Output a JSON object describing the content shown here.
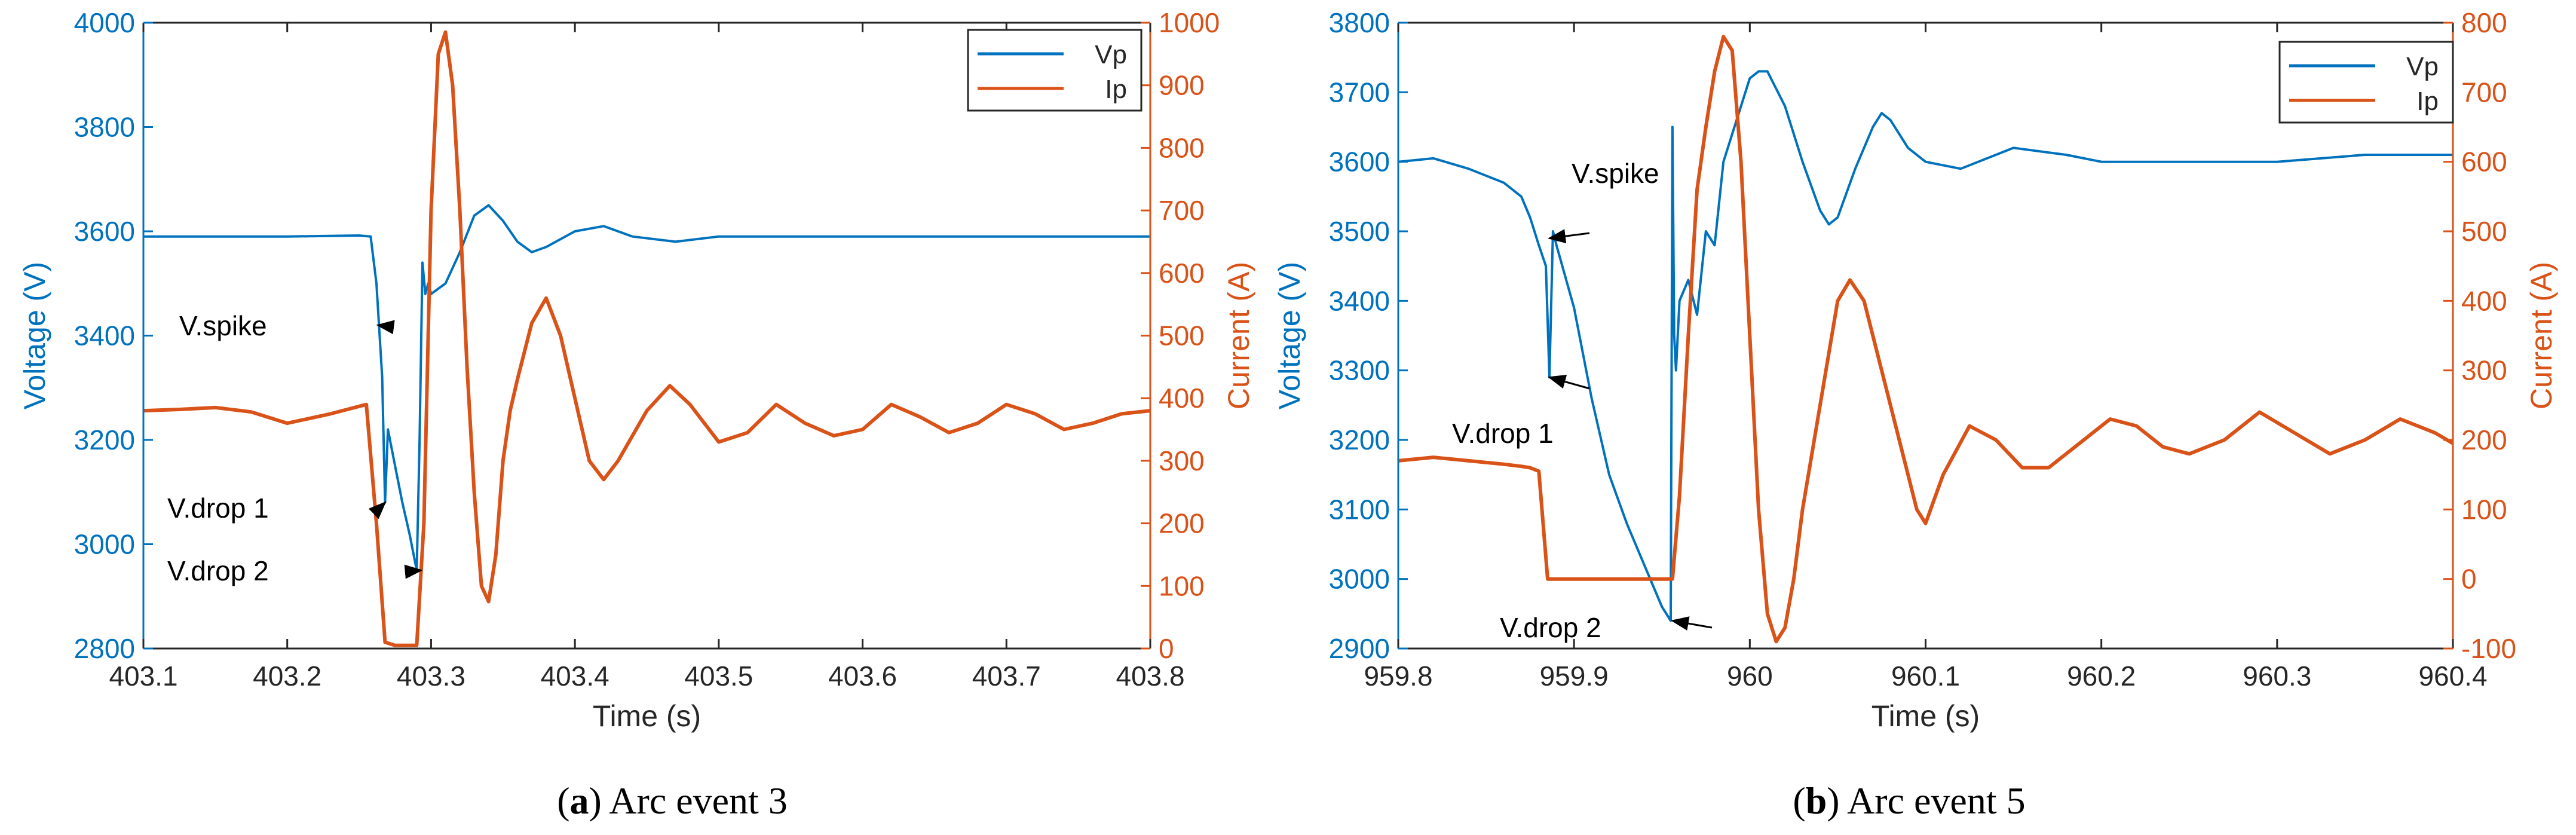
{
  "colors": {
    "voltage": "#0072BD",
    "current": "#D95319",
    "axis": "#262626"
  },
  "captions": [
    {
      "letter": "a",
      "text": " Arc event 3"
    },
    {
      "letter": "b",
      "text": " Arc event 5"
    }
  ],
  "chart_data": [
    {
      "type": "line",
      "title": "",
      "xlabel": "Time (s)",
      "ylabel": "Voltage (V)",
      "ylabel_right": "Current (A)",
      "xlim": [
        403.1,
        403.8
      ],
      "ylim": [
        2800,
        4000
      ],
      "ylim_right": [
        0,
        1000
      ],
      "xticks": [
        403.1,
        403.2,
        403.3,
        403.4,
        403.5,
        403.6,
        403.7,
        403.8
      ],
      "yticks": [
        2800,
        3000,
        3200,
        3400,
        3600,
        3800,
        4000
      ],
      "yticks_right": [
        0,
        100,
        200,
        300,
        400,
        500,
        600,
        700,
        800,
        900,
        1000
      ],
      "legend": "top-right",
      "series": [
        {
          "name": "Vp",
          "axis": "left",
          "x": [
            403.1,
            403.15,
            403.2,
            403.25,
            403.258,
            403.262,
            403.266,
            403.268,
            403.27,
            403.275,
            403.28,
            403.285,
            403.29,
            403.292,
            403.294,
            403.296,
            403.298,
            403.3,
            403.31,
            403.32,
            403.33,
            403.34,
            403.35,
            403.36,
            403.37,
            403.38,
            403.4,
            403.42,
            403.44,
            403.47,
            403.5,
            403.55,
            403.6,
            403.65,
            403.7,
            403.75,
            403.8
          ],
          "y": [
            3590,
            3590,
            3590,
            3592,
            3590,
            3500,
            3320,
            3080,
            3220,
            3150,
            3080,
            3020,
            2950,
            3200,
            3540,
            3480,
            3500,
            3480,
            3500,
            3560,
            3630,
            3650,
            3620,
            3580,
            3560,
            3570,
            3600,
            3610,
            3590,
            3580,
            3590,
            3590,
            3590,
            3590,
            3590,
            3590,
            3590
          ]
        },
        {
          "name": "Ip",
          "axis": "right",
          "x": [
            403.1,
            403.125,
            403.15,
            403.175,
            403.2,
            403.23,
            403.255,
            403.262,
            403.268,
            403.275,
            403.285,
            403.29,
            403.295,
            403.3,
            403.305,
            403.31,
            403.315,
            403.32,
            403.325,
            403.33,
            403.335,
            403.34,
            403.345,
            403.35,
            403.355,
            403.36,
            403.37,
            403.38,
            403.39,
            403.4,
            403.41,
            403.42,
            403.43,
            403.45,
            403.466,
            403.48,
            403.5,
            403.52,
            403.54,
            403.56,
            403.58,
            403.6,
            403.62,
            403.64,
            403.66,
            403.68,
            403.7,
            403.72,
            403.74,
            403.76,
            403.78,
            403.8
          ],
          "y": [
            380,
            382,
            385,
            378,
            360,
            375,
            390,
            200,
            10,
            5,
            5,
            5,
            200,
            700,
            950,
            985,
            900,
            700,
            450,
            250,
            100,
            75,
            150,
            300,
            380,
            430,
            520,
            560,
            500,
            400,
            300,
            270,
            300,
            380,
            420,
            390,
            330,
            345,
            390,
            360,
            340,
            350,
            390,
            370,
            345,
            360,
            390,
            375,
            350,
            360,
            375,
            380
          ]
        }
      ],
      "annotations": [
        {
          "text": "V.spike",
          "x": 403.263,
          "y": 3420
        },
        {
          "text": "V.drop 1",
          "x": 403.268,
          "y": 3080
        },
        {
          "text": "V.drop 2",
          "x": 403.293,
          "y": 2950
        }
      ]
    },
    {
      "type": "line",
      "title": "",
      "xlabel": "Time (s)",
      "ylabel": "Voltage (V)",
      "ylabel_right": "Current (A)",
      "xlim": [
        959.8,
        960.4
      ],
      "ylim": [
        2900,
        3800
      ],
      "ylim_right": [
        -100,
        800
      ],
      "xticks": [
        959.8,
        959.9,
        960,
        960.1,
        960.2,
        960.3,
        960.4
      ],
      "yticks": [
        2900,
        3000,
        3100,
        3200,
        3300,
        3400,
        3500,
        3600,
        3700,
        3800
      ],
      "yticks_right": [
        -100,
        0,
        100,
        200,
        300,
        400,
        500,
        600,
        700,
        800
      ],
      "legend": "top-right",
      "series": [
        {
          "name": "Vp",
          "axis": "left",
          "x": [
            959.8,
            959.82,
            959.84,
            959.86,
            959.87,
            959.875,
            959.88,
            959.884,
            959.886,
            959.888,
            959.89,
            959.9,
            959.91,
            959.92,
            959.93,
            959.94,
            959.95,
            959.955,
            959.956,
            959.957,
            959.958,
            959.96,
            959.965,
            959.97,
            959.975,
            959.98,
            959.985,
            959.99,
            959.995,
            960.0,
            960.005,
            960.01,
            960.02,
            960.03,
            960.04,
            960.045,
            960.05,
            960.06,
            960.07,
            960.075,
            960.08,
            960.09,
            960.1,
            960.12,
            960.15,
            960.18,
            960.2,
            960.25,
            960.3,
            960.35,
            960.4
          ],
          "y": [
            3600,
            3605,
            3590,
            3570,
            3550,
            3520,
            3480,
            3450,
            3290,
            3500,
            3480,
            3390,
            3260,
            3150,
            3080,
            3020,
            2960,
            2940,
            3650,
            3350,
            3300,
            3400,
            3430,
            3380,
            3500,
            3480,
            3600,
            3640,
            3680,
            3720,
            3730,
            3730,
            3680,
            3600,
            3530,
            3510,
            3520,
            3590,
            3650,
            3670,
            3660,
            3620,
            3600,
            3590,
            3620,
            3610,
            3600,
            3600,
            3600,
            3610,
            3610
          ]
        },
        {
          "name": "Ip",
          "axis": "right",
          "x": [
            959.8,
            959.82,
            959.84,
            959.86,
            959.87,
            959.875,
            959.88,
            959.885,
            959.9,
            959.93,
            959.95,
            959.956,
            959.96,
            959.965,
            959.97,
            959.975,
            959.98,
            959.985,
            959.99,
            959.995,
            960.0,
            960.005,
            960.01,
            960.015,
            960.02,
            960.025,
            960.03,
            960.04,
            960.05,
            960.057,
            960.065,
            960.075,
            960.085,
            960.095,
            960.1,
            960.11,
            960.125,
            960.14,
            960.155,
            960.17,
            960.19,
            960.205,
            960.22,
            960.235,
            960.25,
            960.27,
            960.29,
            960.31,
            960.33,
            960.35,
            960.37,
            960.39,
            960.4
          ],
          "y": [
            170,
            175,
            170,
            165,
            162,
            160,
            155,
            0,
            0,
            0,
            0,
            0,
            120,
            350,
            560,
            650,
            730,
            780,
            760,
            600,
            350,
            100,
            -50,
            -90,
            -70,
            0,
            100,
            250,
            400,
            430,
            400,
            300,
            200,
            100,
            80,
            150,
            220,
            200,
            160,
            160,
            200,
            230,
            220,
            190,
            180,
            200,
            240,
            210,
            180,
            200,
            230,
            210,
            195
          ]
        }
      ],
      "annotations": [
        {
          "text": "V.spike",
          "x": 959.886,
          "y": 3490
        },
        {
          "text": "V.drop 1",
          "x": 959.886,
          "y": 3290
        },
        {
          "text": "V.drop 2",
          "x": 959.956,
          "y": 2940
        }
      ]
    }
  ]
}
